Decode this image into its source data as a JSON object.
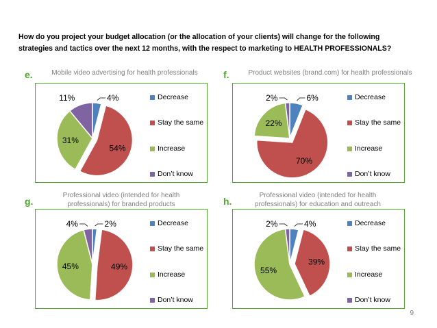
{
  "question": {
    "line1": "How do you project your budget allocation (or the allocation of your clients) will change for the following",
    "line2": "strategies and tactics over the next 12 months, with the respect to marketing to HEALTH PROFESSIONALS?"
  },
  "colors": {
    "decrease": "#4f81bd",
    "stay": "#c0504d",
    "increase": "#9bbb59",
    "dontknow": "#8064a2",
    "accent": "#4ea72e"
  },
  "legend": [
    "Decrease",
    "Stay the same",
    "Increase",
    "Don’t know"
  ],
  "page_number": "9",
  "chart_data": [
    {
      "type": "pie",
      "letter": "e.",
      "title": "Mobile video advertising for health professionals",
      "categories": [
        "Decrease",
        "Stay the same",
        "Increase",
        "Don’t know"
      ],
      "values": [
        4,
        54,
        31,
        11
      ],
      "labels": [
        "4%",
        "54%",
        "31%",
        "11%"
      ]
    },
    {
      "type": "pie",
      "letter": "f.",
      "title": "Product websites (brand.com) for health professionals",
      "categories": [
        "Decrease",
        "Stay the same",
        "Increase",
        "Don’t know"
      ],
      "values": [
        6,
        70,
        22,
        2
      ],
      "labels": [
        "6%",
        "70%",
        "22%",
        "2%"
      ]
    },
    {
      "type": "pie",
      "letter": "g.",
      "title": "Professional video (intended for health professionals) for branded products",
      "title_lines": [
        "Professional video (intended for health",
        "professionals) for branded products"
      ],
      "categories": [
        "Decrease",
        "Stay the same",
        "Increase",
        "Don’t know"
      ],
      "values": [
        2,
        49,
        45,
        4
      ],
      "labels": [
        "2%",
        "49%",
        "45%",
        "4%"
      ]
    },
    {
      "type": "pie",
      "letter": "h.",
      "title": "Professional video (intended for health professionals) for education and outreach",
      "title_lines": [
        "Professional video (intended for health",
        "professionals) for education and outreach"
      ],
      "categories": [
        "Decrease",
        "Stay the same",
        "Increase",
        "Don’t know"
      ],
      "values": [
        4,
        39,
        55,
        2
      ],
      "labels": [
        "4%",
        "39%",
        "55%",
        "2%"
      ]
    }
  ]
}
